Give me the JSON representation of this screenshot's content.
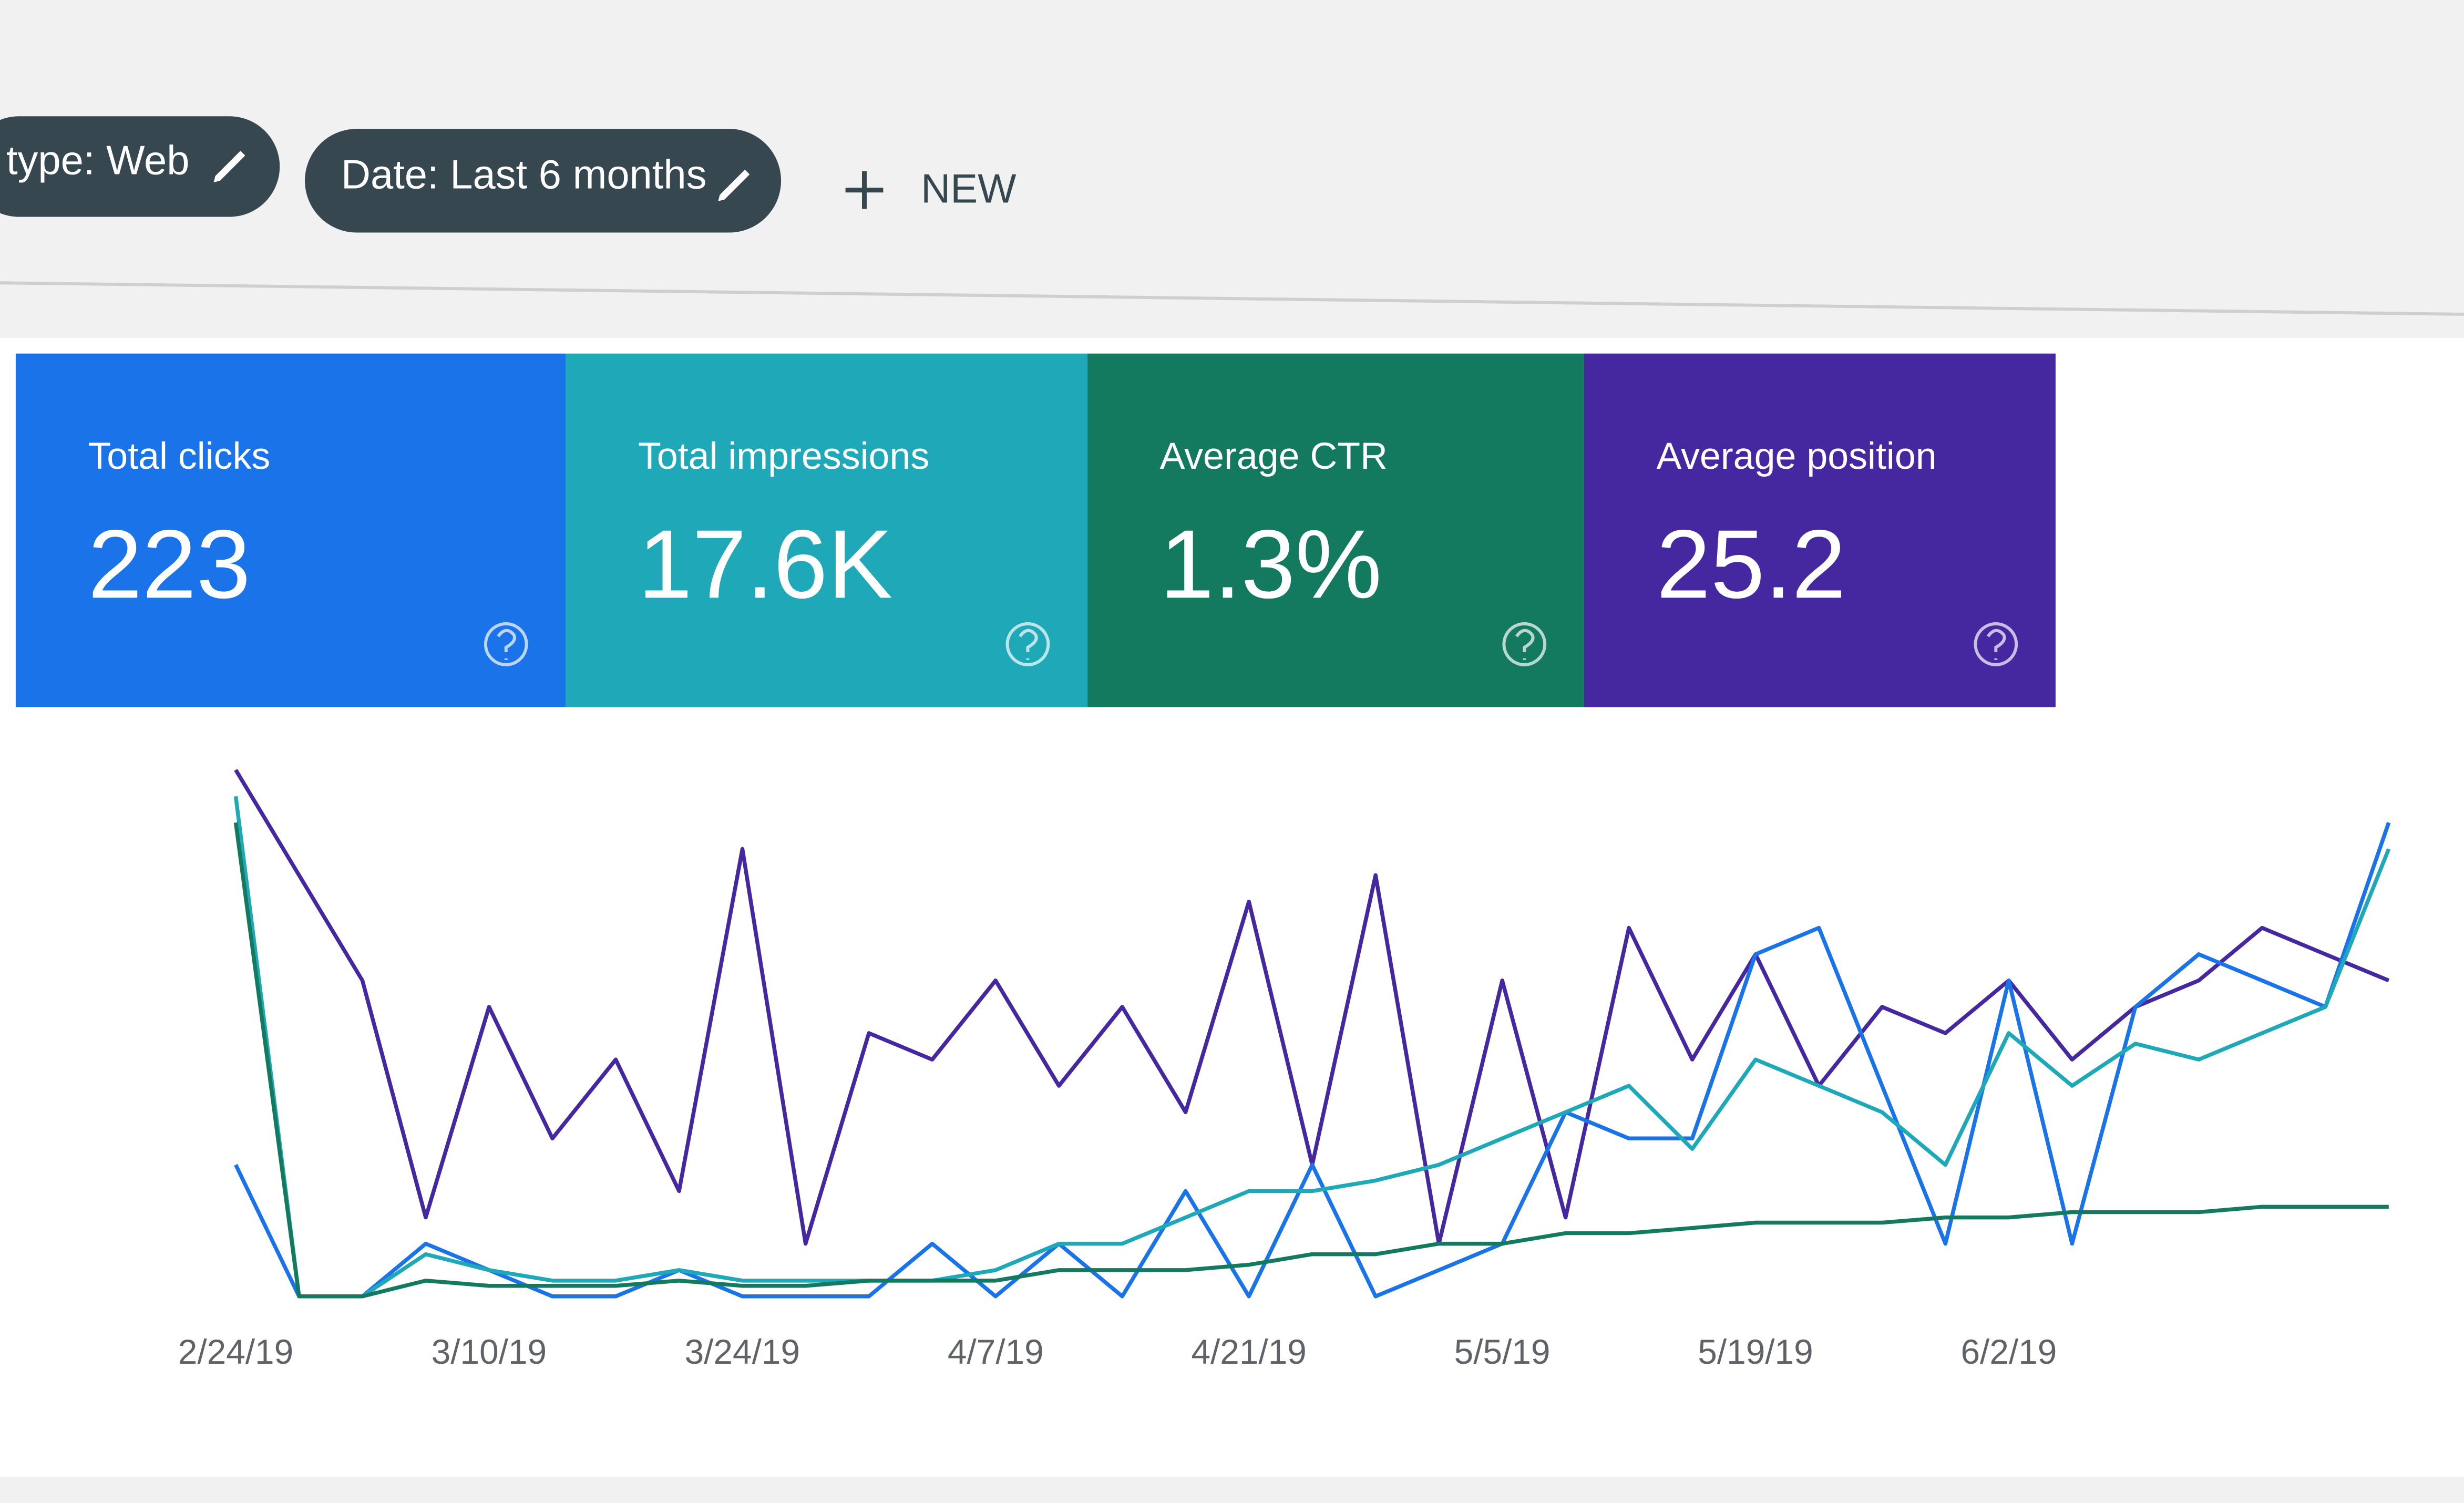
{
  "toolbar": {
    "filters": [
      "type: Web",
      "Date: Last 6 months"
    ],
    "new_button": "NEW"
  },
  "metrics": [
    {
      "label": "Total clicks",
      "value": "223"
    },
    {
      "label": "Total impressions",
      "value": "17.6K"
    },
    {
      "label": "Average CTR",
      "value": "1.3%"
    },
    {
      "label": "Average position",
      "value": "25.2"
    }
  ],
  "chart_data": {
    "type": "line",
    "categories": [
      "2/24/19",
      null,
      null,
      null,
      "3/10/19",
      null,
      null,
      null,
      "3/24/19",
      null,
      null,
      null,
      "4/7/19",
      null,
      null,
      null,
      "4/21/19",
      null,
      null,
      null,
      "5/5/19",
      null,
      null,
      null,
      "5/19/19",
      null,
      null,
      null,
      "6/2/19",
      null,
      null,
      null,
      null,
      null,
      null
    ],
    "ylim": [
      0,
      100
    ],
    "series": [
      {
        "color": "#4527a0",
        "values": [
          100,
          80,
          60,
          15,
          55,
          30,
          45,
          20,
          85,
          10,
          50,
          45,
          60,
          40,
          55,
          35,
          75,
          25,
          80,
          10,
          60,
          15,
          70,
          45,
          65,
          40,
          55,
          50,
          60,
          45,
          55,
          60,
          70,
          65,
          60
        ]
      },
      {
        "color": "#1a73e8",
        "values": [
          25,
          0,
          0,
          10,
          5,
          0,
          0,
          5,
          0,
          0,
          0,
          10,
          0,
          10,
          0,
          20,
          0,
          25,
          0,
          5,
          10,
          35,
          30,
          30,
          65,
          70,
          40,
          10,
          60,
          10,
          55,
          65,
          60,
          55,
          90
        ]
      },
      {
        "color": "#1fa9b8",
        "values": [
          95,
          0,
          0,
          8,
          5,
          3,
          3,
          5,
          3,
          3,
          3,
          3,
          5,
          10,
          10,
          15,
          20,
          20,
          22,
          25,
          30,
          35,
          40,
          28,
          45,
          40,
          35,
          25,
          50,
          40,
          48,
          45,
          50,
          55,
          85
        ]
      },
      {
        "color": "#137a5f",
        "values": [
          90,
          0,
          0,
          3,
          2,
          2,
          2,
          3,
          2,
          2,
          3,
          3,
          3,
          5,
          5,
          5,
          6,
          8,
          8,
          10,
          10,
          12,
          12,
          13,
          14,
          14,
          14,
          15,
          15,
          16,
          16,
          16,
          17,
          17,
          17
        ]
      }
    ]
  }
}
